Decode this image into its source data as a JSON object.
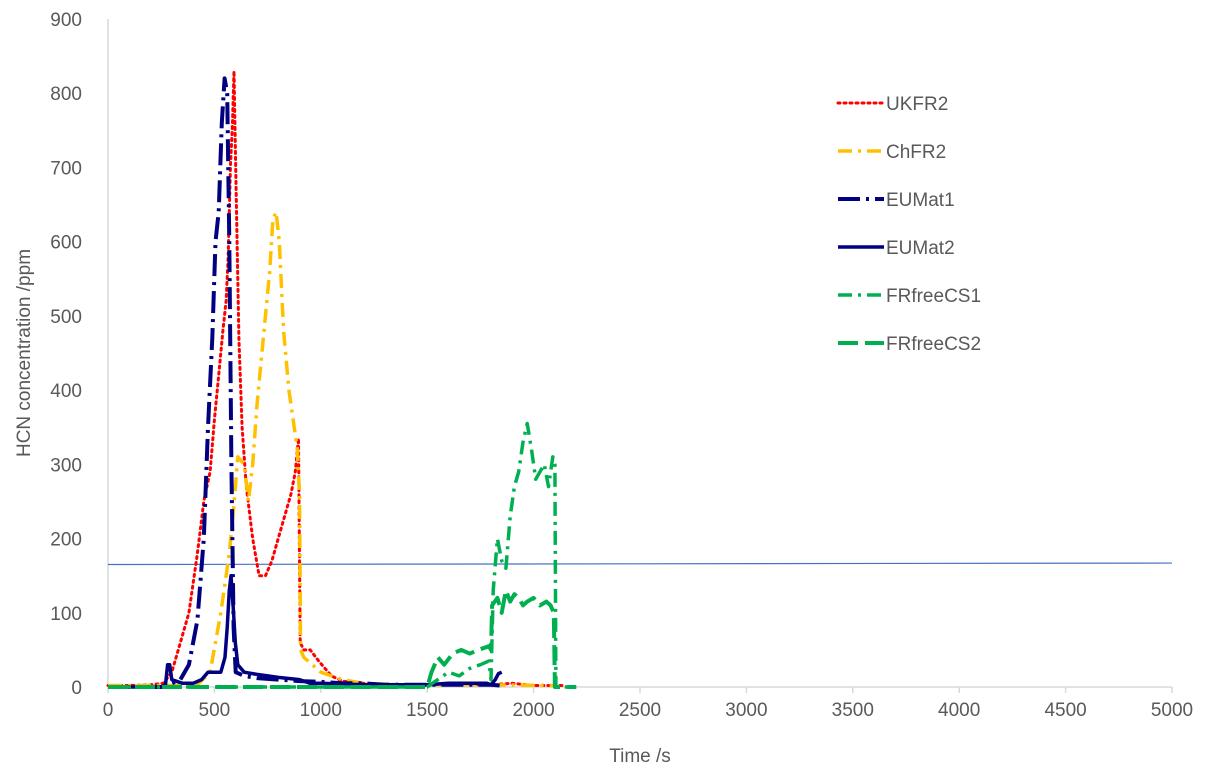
{
  "chart_data": {
    "type": "line",
    "title": "",
    "xlabel": "Time /s",
    "ylabel": "HCN concentration /ppm",
    "xlim": [
      0,
      5000
    ],
    "ylim": [
      0,
      900
    ],
    "x_ticks": [
      0,
      500,
      1000,
      1500,
      2000,
      2500,
      3000,
      3500,
      4000,
      4500,
      5000
    ],
    "y_ticks": [
      0,
      100,
      200,
      300,
      400,
      500,
      600,
      700,
      800,
      900
    ],
    "grid": false,
    "legend_position": "right",
    "reference_line": {
      "y_start": 165,
      "y_end": 167,
      "x_end": 5000,
      "color": "#4472C4"
    },
    "series": [
      {
        "name": "UKFR2",
        "color": "#FF0000",
        "style": "dotted",
        "points": [
          [
            0,
            2
          ],
          [
            100,
            2
          ],
          [
            200,
            3
          ],
          [
            260,
            5
          ],
          [
            300,
            20
          ],
          [
            340,
            60
          ],
          [
            380,
            100
          ],
          [
            420,
            180
          ],
          [
            450,
            250
          ],
          [
            480,
            290
          ],
          [
            500,
            360
          ],
          [
            520,
            420
          ],
          [
            540,
            480
          ],
          [
            555,
            520
          ],
          [
            565,
            580
          ],
          [
            575,
            700
          ],
          [
            585,
            760
          ],
          [
            592,
            830
          ],
          [
            600,
            700
          ],
          [
            615,
            470
          ],
          [
            630,
            350
          ],
          [
            650,
            270
          ],
          [
            680,
            200
          ],
          [
            710,
            150
          ],
          [
            740,
            150
          ],
          [
            770,
            170
          ],
          [
            800,
            200
          ],
          [
            830,
            230
          ],
          [
            860,
            260
          ],
          [
            880,
            290
          ],
          [
            895,
            335
          ],
          [
            903,
            60
          ],
          [
            920,
            50
          ],
          [
            950,
            50
          ],
          [
            990,
            35
          ],
          [
            1050,
            15
          ],
          [
            1100,
            8
          ],
          [
            1200,
            5
          ],
          [
            1400,
            3
          ],
          [
            1800,
            3
          ],
          [
            1900,
            5
          ],
          [
            2000,
            2
          ],
          [
            2150,
            2
          ]
        ]
      },
      {
        "name": "ChFR2",
        "color": "#FFC000",
        "style": "dashdot",
        "points": [
          [
            0,
            2
          ],
          [
            300,
            2
          ],
          [
            420,
            3
          ],
          [
            480,
            20
          ],
          [
            530,
            100
          ],
          [
            570,
            180
          ],
          [
            590,
            240
          ],
          [
            610,
            310
          ],
          [
            640,
            300
          ],
          [
            660,
            250
          ],
          [
            680,
            300
          ],
          [
            700,
            380
          ],
          [
            730,
            470
          ],
          [
            760,
            560
          ],
          [
            775,
            630
          ],
          [
            790,
            640
          ],
          [
            805,
            600
          ],
          [
            825,
            480
          ],
          [
            850,
            400
          ],
          [
            875,
            350
          ],
          [
            890,
            320
          ],
          [
            900,
            260
          ],
          [
            905,
            50
          ],
          [
            920,
            40
          ],
          [
            960,
            30
          ],
          [
            1000,
            20
          ],
          [
            1100,
            10
          ],
          [
            1200,
            5
          ],
          [
            1400,
            3
          ],
          [
            1800,
            3
          ],
          [
            2100,
            2
          ]
        ]
      },
      {
        "name": "EUMat1",
        "color": "#000080",
        "style": "longdashdot",
        "points": [
          [
            0,
            0
          ],
          [
            260,
            0
          ],
          [
            300,
            5
          ],
          [
            340,
            10
          ],
          [
            380,
            30
          ],
          [
            420,
            90
          ],
          [
            450,
            200
          ],
          [
            470,
            350
          ],
          [
            490,
            470
          ],
          [
            505,
            600
          ],
          [
            520,
            640
          ],
          [
            535,
            760
          ],
          [
            548,
            820
          ],
          [
            560,
            800
          ],
          [
            570,
            600
          ],
          [
            580,
            300
          ],
          [
            590,
            80
          ],
          [
            600,
            20
          ],
          [
            640,
            15
          ],
          [
            700,
            12
          ],
          [
            800,
            10
          ],
          [
            900,
            8
          ],
          [
            1000,
            7
          ],
          [
            1100,
            5
          ],
          [
            1200,
            5
          ],
          [
            1300,
            3
          ],
          [
            1500,
            3
          ],
          [
            1800,
            3
          ],
          [
            1840,
            2
          ]
        ]
      },
      {
        "name": "EUMat2",
        "color": "#000080",
        "style": "solid",
        "points": [
          [
            0,
            0
          ],
          [
            250,
            0
          ],
          [
            270,
            3
          ],
          [
            280,
            30
          ],
          [
            290,
            30
          ],
          [
            300,
            10
          ],
          [
            350,
            5
          ],
          [
            400,
            5
          ],
          [
            440,
            10
          ],
          [
            470,
            20
          ],
          [
            500,
            20
          ],
          [
            530,
            20
          ],
          [
            550,
            40
          ],
          [
            560,
            80
          ],
          [
            570,
            130
          ],
          [
            578,
            150
          ],
          [
            588,
            110
          ],
          [
            598,
            60
          ],
          [
            610,
            30
          ],
          [
            640,
            20
          ],
          [
            700,
            17
          ],
          [
            800,
            13
          ],
          [
            900,
            10
          ],
          [
            950,
            5
          ],
          [
            1000,
            5
          ],
          [
            1100,
            4
          ],
          [
            1200,
            3
          ],
          [
            1300,
            3
          ],
          [
            1400,
            3
          ],
          [
            1500,
            3
          ],
          [
            1600,
            5
          ],
          [
            1700,
            5
          ],
          [
            1780,
            5
          ],
          [
            1800,
            3
          ],
          [
            1820,
            10
          ],
          [
            1835,
            18
          ],
          [
            1850,
            20
          ]
        ]
      },
      {
        "name": "FRfreeCS1",
        "color": "#00B050",
        "style": "dashdot",
        "points": [
          [
            0,
            0
          ],
          [
            200,
            0
          ],
          [
            500,
            0
          ],
          [
            1000,
            0
          ],
          [
            1500,
            0
          ],
          [
            1550,
            10
          ],
          [
            1600,
            20
          ],
          [
            1650,
            15
          ],
          [
            1700,
            25
          ],
          [
            1750,
            30
          ],
          [
            1790,
            35
          ],
          [
            1800,
            10
          ],
          [
            1810,
            130
          ],
          [
            1830,
            200
          ],
          [
            1850,
            170
          ],
          [
            1870,
            160
          ],
          [
            1890,
            230
          ],
          [
            1910,
            270
          ],
          [
            1930,
            290
          ],
          [
            1950,
            330
          ],
          [
            1970,
            355
          ],
          [
            1990,
            320
          ],
          [
            2010,
            280
          ],
          [
            2030,
            290
          ],
          [
            2050,
            300
          ],
          [
            2070,
            270
          ],
          [
            2090,
            310
          ],
          [
            2100,
            300
          ],
          [
            2105,
            0
          ],
          [
            2200,
            0
          ]
        ]
      },
      {
        "name": "FRfreeCS2",
        "color": "#00B050",
        "style": "longdash",
        "points": [
          [
            0,
            0
          ],
          [
            300,
            0
          ],
          [
            800,
            0
          ],
          [
            1200,
            0
          ],
          [
            1500,
            0
          ],
          [
            1520,
            20
          ],
          [
            1550,
            40
          ],
          [
            1580,
            30
          ],
          [
            1620,
            45
          ],
          [
            1660,
            50
          ],
          [
            1700,
            45
          ],
          [
            1740,
            50
          ],
          [
            1790,
            55
          ],
          [
            1800,
            50
          ],
          [
            1805,
            110
          ],
          [
            1830,
            120
          ],
          [
            1850,
            100
          ],
          [
            1870,
            130
          ],
          [
            1890,
            115
          ],
          [
            1910,
            125
          ],
          [
            1930,
            120
          ],
          [
            1950,
            110
          ],
          [
            1970,
            115
          ],
          [
            2000,
            120
          ],
          [
            2030,
            110
          ],
          [
            2060,
            115
          ],
          [
            2080,
            110
          ],
          [
            2095,
            100
          ],
          [
            2100,
            0
          ],
          [
            2200,
            0
          ]
        ]
      }
    ]
  }
}
